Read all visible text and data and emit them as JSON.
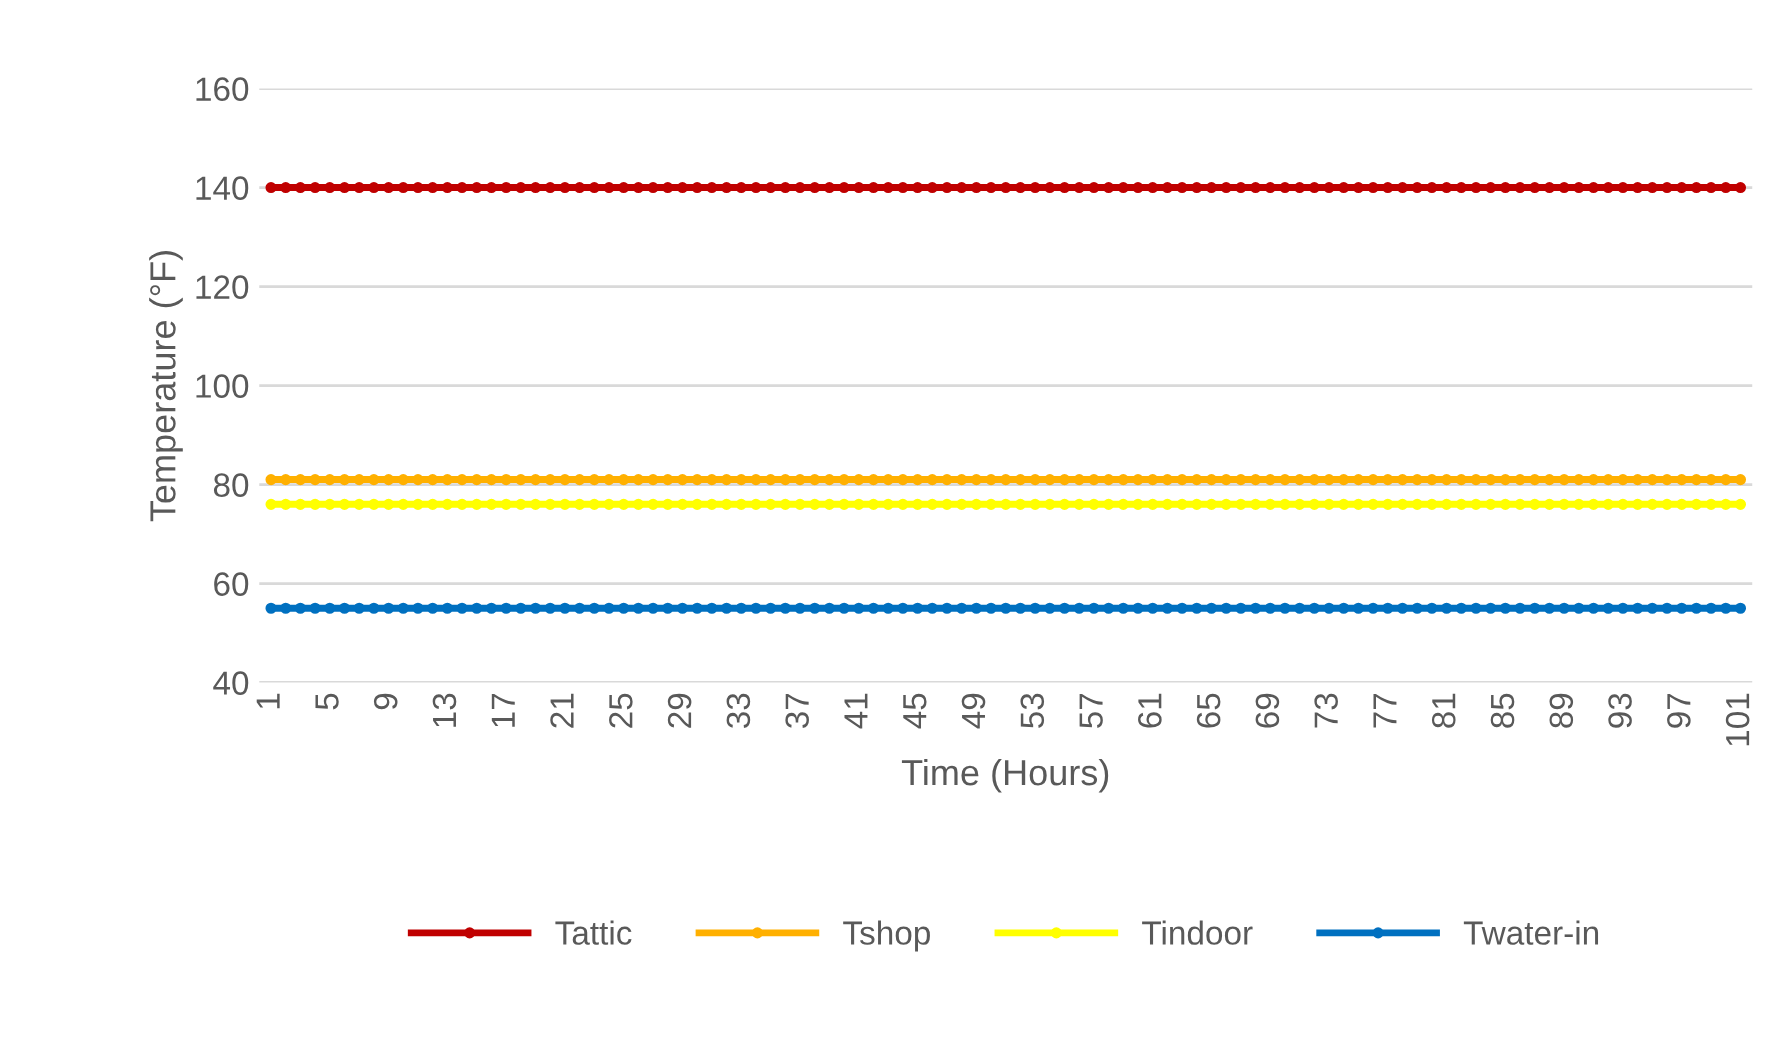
{
  "chart_data": {
    "type": "line",
    "xlabel": "Time (Hours)",
    "ylabel": "Temperature (°F)",
    "categories": [
      "1",
      null,
      null,
      null,
      "5",
      null,
      null,
      null,
      "9",
      null,
      null,
      null,
      "13",
      null,
      null,
      null,
      "17",
      null,
      null,
      null,
      "21",
      null,
      null,
      null,
      "25",
      null,
      null,
      null,
      "29",
      null,
      null,
      null,
      "33",
      null,
      null,
      null,
      "37",
      null,
      null,
      null,
      "41",
      null,
      null,
      null,
      "45",
      null,
      null,
      null,
      "49",
      null,
      null,
      null,
      "53",
      null,
      null,
      null,
      "57",
      null,
      null,
      null,
      "61",
      null,
      null,
      null,
      "65",
      null,
      null,
      null,
      "69",
      null,
      null,
      null,
      "73",
      null,
      null,
      null,
      "77",
      null,
      null,
      null,
      "81",
      null,
      null,
      null,
      "85",
      null,
      null,
      null,
      "89",
      null,
      null,
      null,
      "93",
      null,
      null,
      null,
      "97",
      null,
      null,
      null,
      "101"
    ],
    "series": [
      {
        "name": "Tattic",
        "color": "#c00000",
        "values": [
          140,
          140,
          140,
          140,
          140,
          140,
          140,
          140,
          140,
          140,
          140,
          140,
          140,
          140,
          140,
          140,
          140,
          140,
          140,
          140,
          140,
          140,
          140,
          140,
          140,
          140,
          140,
          140,
          140,
          140,
          140,
          140,
          140,
          140,
          140,
          140,
          140,
          140,
          140,
          140,
          140,
          140,
          140,
          140,
          140,
          140,
          140,
          140,
          140,
          140,
          140,
          140,
          140,
          140,
          140,
          140,
          140,
          140,
          140,
          140,
          140,
          140,
          140,
          140,
          140,
          140,
          140,
          140,
          140,
          140,
          140,
          140,
          140,
          140,
          140,
          140,
          140,
          140,
          140,
          140,
          140,
          140,
          140,
          140,
          140,
          140,
          140,
          140,
          140,
          140,
          140,
          140,
          140,
          140,
          140,
          140,
          140,
          140,
          140,
          140,
          140
        ]
      },
      {
        "name": "Tshop",
        "color": "#ffb000",
        "values": [
          81,
          81,
          81,
          81,
          81,
          81,
          81,
          81,
          81,
          81,
          81,
          81,
          81,
          81,
          81,
          81,
          81,
          81,
          81,
          81,
          81,
          81,
          81,
          81,
          81,
          81,
          81,
          81,
          81,
          81,
          81,
          81,
          81,
          81,
          81,
          81,
          81,
          81,
          81,
          81,
          81,
          81,
          81,
          81,
          81,
          81,
          81,
          81,
          81,
          81,
          81,
          81,
          81,
          81,
          81,
          81,
          81,
          81,
          81,
          81,
          81,
          81,
          81,
          81,
          81,
          81,
          81,
          81,
          81,
          81,
          81,
          81,
          81,
          81,
          81,
          81,
          81,
          81,
          81,
          81,
          81,
          81,
          81,
          81,
          81,
          81,
          81,
          81,
          81,
          81,
          81,
          81,
          81,
          81,
          81,
          81,
          81,
          81,
          81,
          81,
          81
        ]
      },
      {
        "name": "Tindoor",
        "color": "#ffff00",
        "values": [
          76,
          76,
          76,
          76,
          76,
          76,
          76,
          76,
          76,
          76,
          76,
          76,
          76,
          76,
          76,
          76,
          76,
          76,
          76,
          76,
          76,
          76,
          76,
          76,
          76,
          76,
          76,
          76,
          76,
          76,
          76,
          76,
          76,
          76,
          76,
          76,
          76,
          76,
          76,
          76,
          76,
          76,
          76,
          76,
          76,
          76,
          76,
          76,
          76,
          76,
          76,
          76,
          76,
          76,
          76,
          76,
          76,
          76,
          76,
          76,
          76,
          76,
          76,
          76,
          76,
          76,
          76,
          76,
          76,
          76,
          76,
          76,
          76,
          76,
          76,
          76,
          76,
          76,
          76,
          76,
          76,
          76,
          76,
          76,
          76,
          76,
          76,
          76,
          76,
          76,
          76,
          76,
          76,
          76,
          76,
          76,
          76,
          76,
          76,
          76,
          76
        ]
      },
      {
        "name": "Twater-in",
        "color": "#0070c0",
        "values": [
          55,
          55,
          55,
          55,
          55,
          55,
          55,
          55,
          55,
          55,
          55,
          55,
          55,
          55,
          55,
          55,
          55,
          55,
          55,
          55,
          55,
          55,
          55,
          55,
          55,
          55,
          55,
          55,
          55,
          55,
          55,
          55,
          55,
          55,
          55,
          55,
          55,
          55,
          55,
          55,
          55,
          55,
          55,
          55,
          55,
          55,
          55,
          55,
          55,
          55,
          55,
          55,
          55,
          55,
          55,
          55,
          55,
          55,
          55,
          55,
          55,
          55,
          55,
          55,
          55,
          55,
          55,
          55,
          55,
          55,
          55,
          55,
          55,
          55,
          55,
          55,
          55,
          55,
          55,
          55,
          55,
          55,
          55,
          55,
          55,
          55,
          55,
          55,
          55,
          55,
          55,
          55,
          55,
          55,
          55,
          55,
          55,
          55,
          55,
          55,
          55
        ]
      }
    ],
    "ylim": [
      40,
      160
    ],
    "yticks": [
      40,
      60,
      80,
      100,
      120,
      140,
      160
    ],
    "grid": "y",
    "legend": "bottom",
    "marker": "circle",
    "line_style": "solid"
  }
}
